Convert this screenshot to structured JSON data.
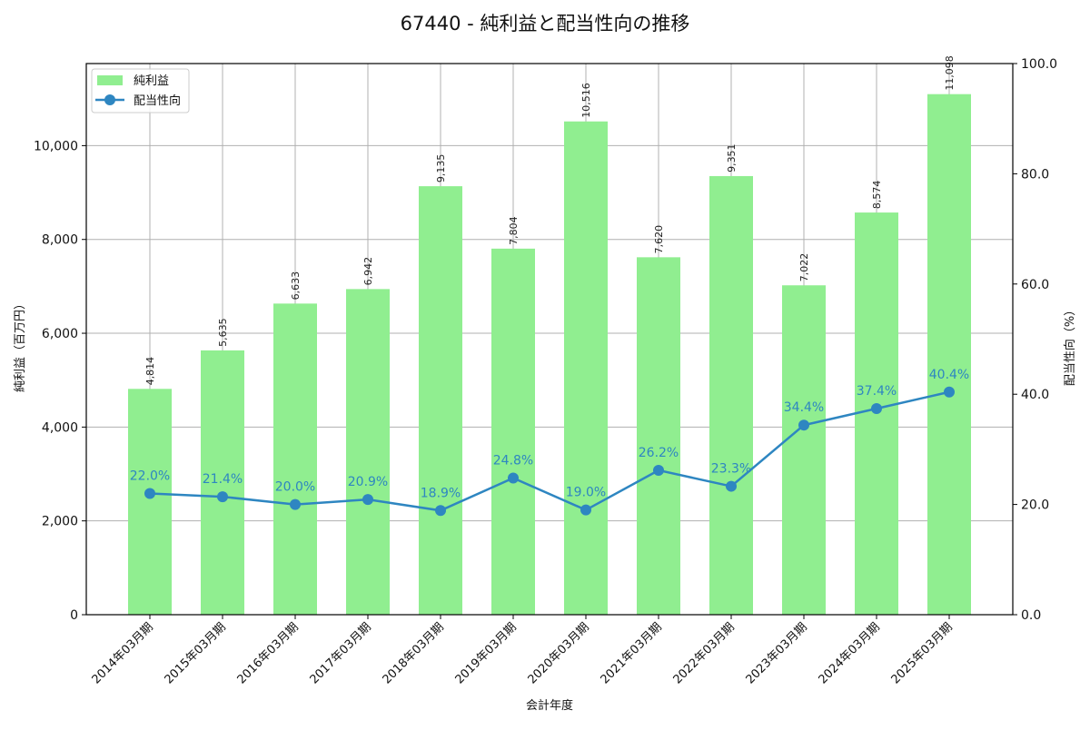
{
  "chart_data": {
    "type": "bar+line",
    "title": "67440 - 純利益と配当性向の推移",
    "xlabel": "会計年度",
    "ylabel_left": "純利益（百万円）",
    "ylabel_right": "配当性向（%）",
    "categories": [
      "2014年03月期",
      "2015年03月期",
      "2016年03月期",
      "2017年03月期",
      "2018年03月期",
      "2019年03月期",
      "2020年03月期",
      "2021年03月期",
      "2022年03月期",
      "2023年03月期",
      "2024年03月期",
      "2025年03月期"
    ],
    "series": [
      {
        "name": "純利益",
        "type": "bar",
        "axis": "left",
        "color": "#90ee90",
        "values": [
          4814,
          5635,
          6633,
          6942,
          9135,
          7804,
          10516,
          7620,
          9351,
          7022,
          8574,
          11098
        ],
        "labels": [
          "4,814",
          "5,635",
          "6,633",
          "6,942",
          "9,135",
          "7,804",
          "10,516",
          "7,620",
          "9,351",
          "7,022",
          "8,574",
          "11,098"
        ]
      },
      {
        "name": "配当性向",
        "type": "line",
        "axis": "right",
        "color": "#2e86c1",
        "values": [
          22.0,
          21.4,
          20.0,
          20.9,
          18.9,
          24.8,
          19.0,
          26.2,
          23.3,
          34.4,
          37.4,
          40.4
        ],
        "labels": [
          "22.0%",
          "21.4%",
          "20.0%",
          "20.9%",
          "18.9%",
          "24.8%",
          "19.0%",
          "26.2%",
          "23.3%",
          "34.4%",
          "37.4%",
          "40.4%"
        ]
      }
    ],
    "ylim_left": [
      0,
      11750
    ],
    "yticks_left": [
      0,
      2000,
      4000,
      6000,
      8000,
      10000
    ],
    "yticklabels_left": [
      "0",
      "2,000",
      "4,000",
      "6,000",
      "8,000",
      "10,000"
    ],
    "ylim_right": [
      0,
      100
    ],
    "yticks_right": [
      0,
      20,
      40,
      60,
      80,
      100
    ],
    "yticklabels_right": [
      "0.0",
      "20.0",
      "40.0",
      "60.0",
      "80.0",
      "100.0"
    ],
    "grid": true,
    "legend_position": "upper left",
    "legend": [
      {
        "label": "純利益",
        "kind": "bar",
        "color": "#90ee90"
      },
      {
        "label": "配当性向",
        "kind": "line",
        "color": "#2e86c1"
      }
    ]
  }
}
